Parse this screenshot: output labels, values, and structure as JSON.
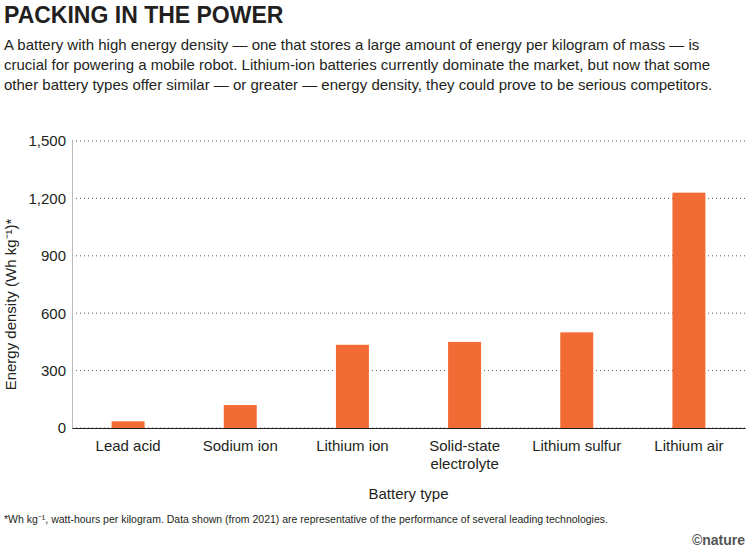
{
  "chart_data": {
    "type": "bar",
    "title": "PACKING IN THE POWER",
    "subtitle": "A battery with high energy density — one that stores a large amount of energy per kilogram of mass — is crucial for powering a mobile robot. Lithium-ion batteries currently dominate the market, but now that some other battery types offer similar — or greater — energy density, they could prove to be serious competitors.",
    "x_label": "Battery type",
    "y_label": "Energy density (Wh kg⁻¹)*",
    "footnote": "*Wh kg⁻¹, watt-hours per kilogram. Data shown (from 2021) are representative of the performance of several leading technologies.",
    "credit": "©nature",
    "categories": [
      "Lead acid",
      "Sodium ion",
      "Lithium ion",
      "Solid-state electrolyte",
      "Lithium sulfur",
      "Lithium air"
    ],
    "values": [
      35,
      120,
      435,
      450,
      500,
      1230
    ],
    "color": "#f26b35",
    "ylim": [
      0,
      1500
    ],
    "yticks": [
      0,
      300,
      600,
      900,
      {
        "value": 1200,
        "label": "1,200"
      },
      {
        "value": 1500,
        "label": "1,500"
      }
    ],
    "grid": true
  }
}
